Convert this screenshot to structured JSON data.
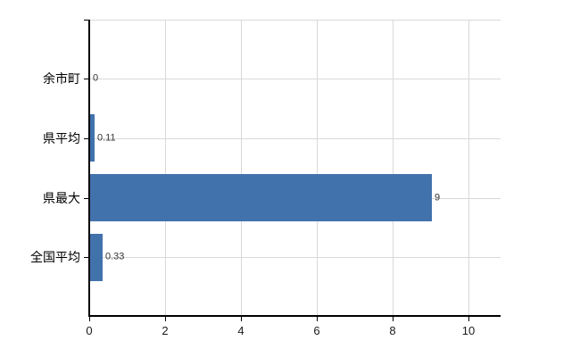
{
  "chart_data": {
    "type": "bar",
    "orientation": "horizontal",
    "title": "",
    "xlabel": "",
    "ylabel": "",
    "categories": [
      "余市町",
      "県平均",
      "県最大",
      "全国平均"
    ],
    "values": [
      0,
      0.11,
      9,
      0.33
    ],
    "value_labels": [
      "0",
      "0.11",
      "9",
      "0.33"
    ],
    "x_tick_values": [
      0,
      2,
      4,
      6,
      8,
      10
    ],
    "x_tick_labels": [
      "0",
      "2",
      "4",
      "6",
      "8",
      "10"
    ],
    "xlim": [
      0,
      10.85
    ],
    "grid": true,
    "legend": false,
    "colors": {
      "bar": "#4272ac",
      "gridline": "#d9d9d9",
      "axis": "#000000",
      "category_text": "#000000",
      "value_text": "#333333",
      "tick_text": "#1a1a1a",
      "background": "#ffffff"
    }
  }
}
